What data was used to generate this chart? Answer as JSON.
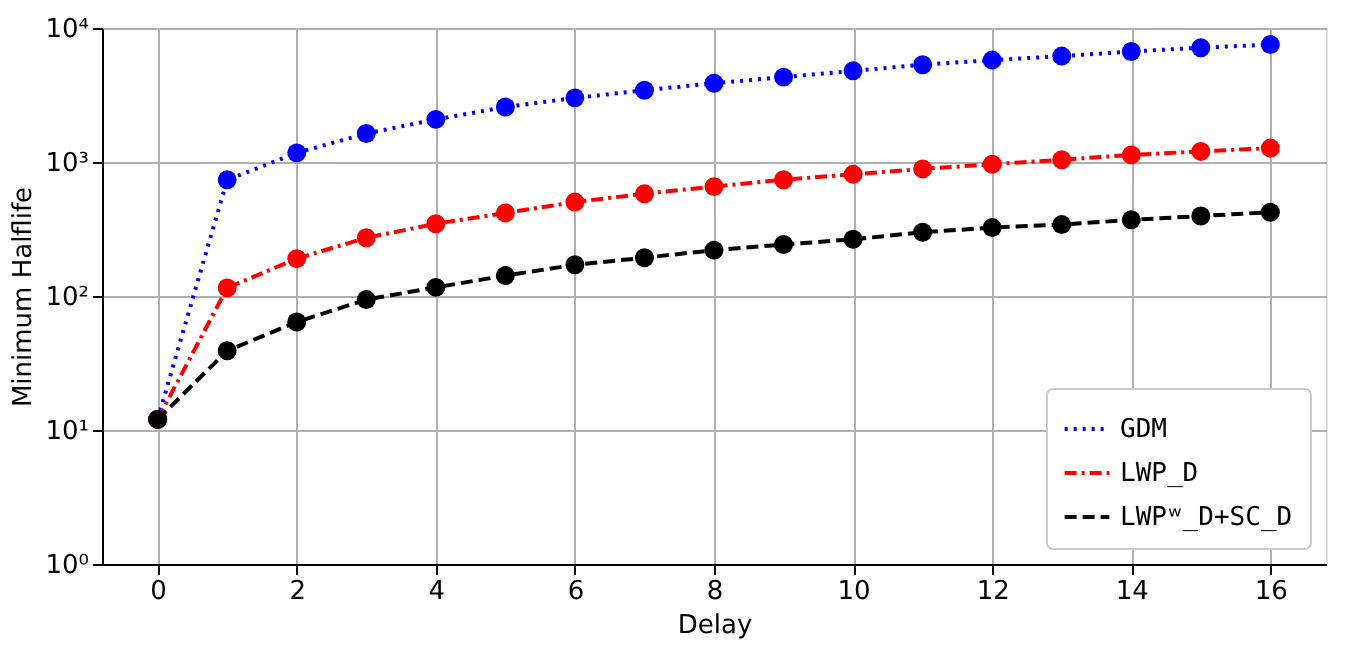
{
  "chart_data": {
    "type": "line",
    "xlabel": "Delay",
    "ylabel": "Minimum Halflife",
    "x": [
      0,
      1,
      2,
      3,
      4,
      5,
      6,
      7,
      8,
      9,
      10,
      11,
      12,
      13,
      14,
      15,
      16
    ],
    "series": [
      {
        "name": "GDM",
        "color": "#0000ff",
        "line_style": "dotted",
        "values": [
          12,
          736,
          1170,
          1630,
          2080,
          2570,
          3010,
          3430,
          3870,
          4300,
          4790,
          5320,
          5760,
          6170,
          6670,
          7130,
          7520
        ]
      },
      {
        "name": "LWP_D",
        "color": "#ff0000",
        "line_style": "dashdot",
        "values": [
          12,
          115,
          190,
          272,
          346,
          417,
          502,
          580,
          655,
          738,
          809,
          888,
          962,
          1040,
          1130,
          1200,
          1270
        ]
      },
      {
        "name": "LWPʷ_D+SC_D",
        "color": "#000000",
        "line_style": "dashed",
        "values": [
          12,
          39,
          64,
          94,
          116,
          142,
          171,
          193,
          220,
          242,
          265,
          299,
          324,
          341,
          370,
          395,
          422
        ]
      }
    ],
    "log": "y",
    "xlim": [
      -0.8,
      16.8
    ],
    "xticks": [
      0,
      2,
      4,
      6,
      8,
      10,
      12,
      14,
      16
    ],
    "ylim": [
      1,
      10000
    ],
    "yticks": [
      {
        "value": 1,
        "label": "10⁰"
      },
      {
        "value": 10,
        "label": "10¹"
      },
      {
        "value": 100,
        "label": "10²"
      },
      {
        "value": 1000,
        "label": "10³"
      },
      {
        "value": 10000,
        "label": "10⁴"
      }
    ],
    "grid": true,
    "legend": "bottom right",
    "marker": "circle"
  }
}
